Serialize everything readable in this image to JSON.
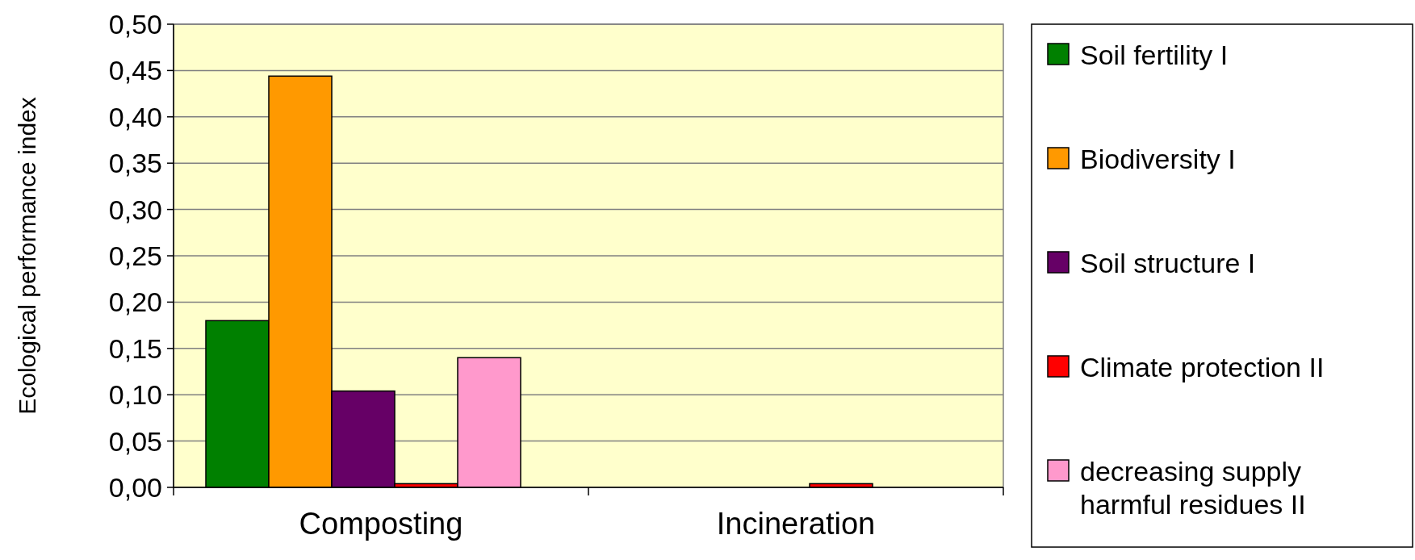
{
  "chart_data": {
    "type": "bar",
    "ylabel": "Ecological performance index",
    "categories": [
      "Composting",
      "Incineration"
    ],
    "series": [
      {
        "name": "Soil fertility I",
        "color": "#008000",
        "values": [
          0.18,
          0
        ]
      },
      {
        "name": "Biodiversity I",
        "color": "#ff9900",
        "values": [
          0.444,
          0
        ]
      },
      {
        "name": "Soil structure I",
        "color": "#660066",
        "values": [
          0.104,
          0
        ]
      },
      {
        "name": "Climate protection II",
        "color": "#ff0000",
        "values": [
          0.004,
          0.004
        ]
      },
      {
        "name": "decreasing supply harmful residues II",
        "color": "#ff99cc",
        "values": [
          0.14,
          0
        ]
      }
    ],
    "ylim": [
      0,
      0.5
    ],
    "yticks": [
      {
        "value": 0,
        "label": "0,00"
      },
      {
        "value": 0.05,
        "label": "0,05"
      },
      {
        "value": 0.1,
        "label": "0,10"
      },
      {
        "value": 0.15,
        "label": "0,15"
      },
      {
        "value": 0.2,
        "label": "0,20"
      },
      {
        "value": 0.25,
        "label": "0,25"
      },
      {
        "value": 0.3,
        "label": "0,30"
      },
      {
        "value": 0.35,
        "label": "0,35"
      },
      {
        "value": 0.4,
        "label": "0,40"
      },
      {
        "value": 0.45,
        "label": "0,45"
      },
      {
        "value": 0.5,
        "label": "0,50"
      }
    ],
    "grid": "y",
    "legend": "right"
  }
}
